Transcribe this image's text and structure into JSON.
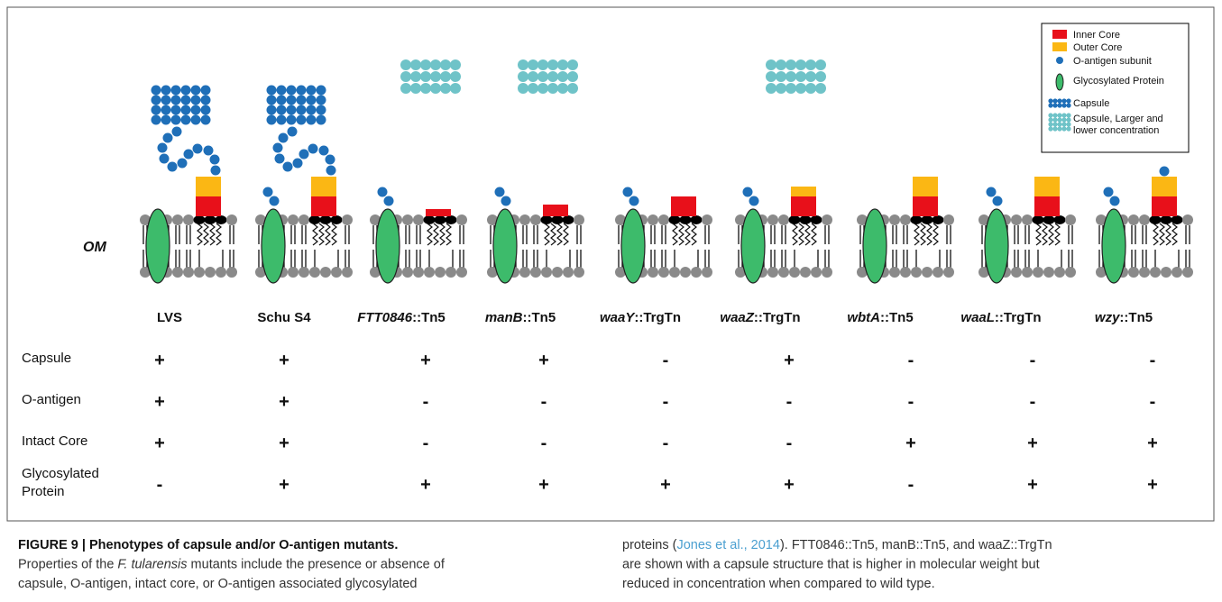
{
  "legend": {
    "items": [
      [
        "Inner Core"
      ],
      [
        "Outer Core"
      ],
      [
        "O-antigen subunit"
      ],
      [
        "Glycosylated Protein"
      ],
      [
        "Capsule"
      ],
      [
        "Capsule, Larger and",
        "lower concentration"
      ]
    ]
  },
  "membrane_label": "OM",
  "strains": [
    {
      "name": "LVS"
    },
    {
      "name": "Schu S4"
    },
    {
      "italic": "FTT0846",
      "suffix": "::Tn5"
    },
    {
      "italic": "manB",
      "suffix": "::Tn5"
    },
    {
      "italic": "waaY",
      "suffix": "::TrgTn"
    },
    {
      "italic": "waaZ",
      "suffix": "::TrgTn"
    },
    {
      "italic": "wbtA",
      "suffix": "::Tn5"
    },
    {
      "italic": "waaL",
      "suffix": "::TrgTn"
    },
    {
      "italic": "wzy",
      "suffix": "::Tn5"
    }
  ],
  "rows": [
    {
      "label": [
        "Capsule"
      ],
      "values": [
        "+",
        "+",
        "+",
        "+",
        "-",
        "+",
        "-",
        "-",
        "-"
      ]
    },
    {
      "label": [
        "O-antigen"
      ],
      "values": [
        "+",
        "+",
        "-",
        "-",
        "-",
        "-",
        "-",
        "-",
        "-"
      ]
    },
    {
      "label": [
        "Intact Core"
      ],
      "values": [
        "+",
        "+",
        "-",
        "-",
        "-",
        "-",
        "+",
        "+",
        "+"
      ]
    },
    {
      "label": [
        "Glycosylated",
        "Protein"
      ],
      "values": [
        "-",
        "+",
        "+",
        "+",
        "+",
        "+",
        "-",
        "+",
        "+"
      ]
    }
  ],
  "caption": {
    "title": "FIGURE 9 | Phenotypes of capsule and/or O-antigen mutants.",
    "left_lines": [
      [
        {
          "text": "Properties of the "
        },
        {
          "text": "F. tularensis",
          "italic": true
        },
        {
          "text": " mutants include the presence or absence of"
        }
      ],
      [
        {
          "text": "capsule, O-antigen, intact core, or O-antigen associated glycosylated"
        }
      ]
    ],
    "right_lines": [
      [
        {
          "text": "proteins ("
        },
        {
          "text": "Jones et al., 2014",
          "link": true
        },
        {
          "text": "). FTT0846::Tn5, manB::Tn5, and waaZ::TrgTn"
        }
      ],
      [
        {
          "text": "are shown with a capsule structure that is higher in molecular weight but"
        }
      ],
      [
        {
          "text": "reduced in concentration when compared to wild type."
        }
      ]
    ]
  }
}
